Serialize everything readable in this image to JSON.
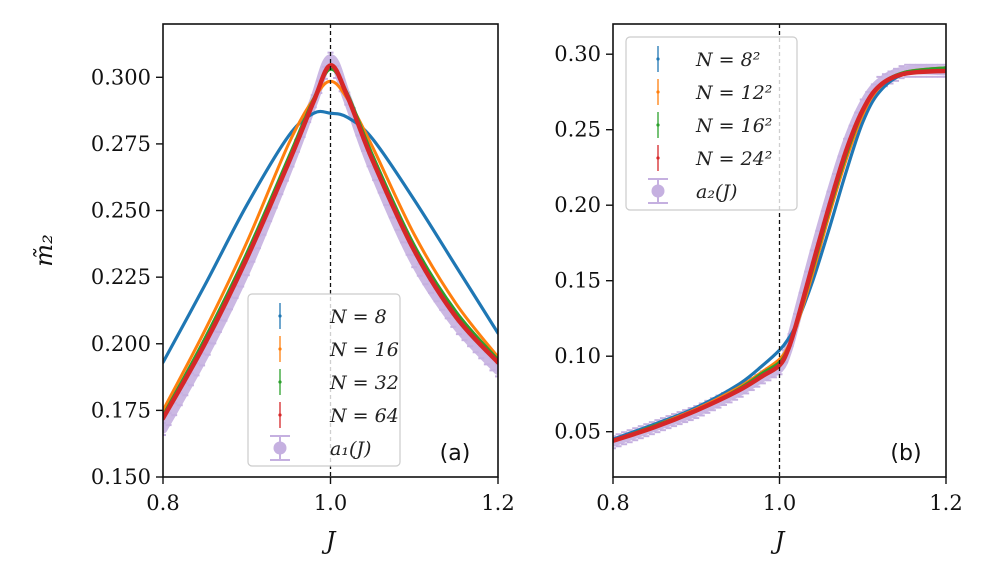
{
  "chart_data": [
    {
      "type": "line",
      "panel_label": "(a)",
      "title": "",
      "xlabel": "J",
      "ylabel": "m̃₂",
      "xlim": [
        0.8,
        1.2
      ],
      "ylim": [
        0.15,
        0.32
      ],
      "xticks": [
        "0.8",
        "1.0",
        "1.2"
      ],
      "xtick_values": [
        0.8,
        1.0,
        1.2
      ],
      "yticks": [
        "0.150",
        "0.175",
        "0.200",
        "0.225",
        "0.250",
        "0.275",
        "0.300"
      ],
      "ytick_values": [
        0.15,
        0.175,
        0.2,
        0.225,
        0.25,
        0.275,
        0.3
      ],
      "vline": 1.0,
      "legend_position": "lower-center",
      "x": [
        0.8,
        0.85,
        0.9,
        0.95,
        0.98,
        1.0,
        1.02,
        1.05,
        1.1,
        1.15,
        1.2
      ],
      "series": [
        {
          "name": "N = 8",
          "color": "#1f77b4",
          "values": [
            0.193,
            0.222,
            0.252,
            0.278,
            0.2865,
            0.2865,
            0.285,
            0.277,
            0.254,
            0.229,
            0.204
          ]
        },
        {
          "name": "N = 16",
          "color": "#ff7f0e",
          "values": [
            0.175,
            0.205,
            0.238,
            0.275,
            0.292,
            0.2985,
            0.292,
            0.274,
            0.241,
            0.215,
            0.195
          ]
        },
        {
          "name": "N = 32",
          "color": "#2ca02c",
          "values": [
            0.173,
            0.202,
            0.234,
            0.27,
            0.292,
            0.303,
            0.294,
            0.271,
            0.237,
            0.212,
            0.194
          ]
        },
        {
          "name": "N = 64",
          "color": "#d62728",
          "values": [
            0.172,
            0.2,
            0.232,
            0.268,
            0.291,
            0.3045,
            0.293,
            0.269,
            0.235,
            0.21,
            0.193
          ]
        },
        {
          "name": "a₁(J)",
          "color": "#c5b0e0",
          "values": [
            0.168,
            0.196,
            0.228,
            0.266,
            0.291,
            0.307,
            0.292,
            0.266,
            0.231,
            0.207,
            0.19
          ]
        }
      ]
    },
    {
      "type": "line",
      "panel_label": "(b)",
      "title": "",
      "xlabel": "J",
      "ylabel": "",
      "xlim": [
        0.8,
        1.2
      ],
      "ylim": [
        0.02,
        0.32
      ],
      "xticks": [
        "0.8",
        "1.0",
        "1.2"
      ],
      "xtick_values": [
        0.8,
        1.0,
        1.2
      ],
      "yticks": [
        "0.05",
        "0.10",
        "0.15",
        "0.20",
        "0.25",
        "0.30"
      ],
      "ytick_values": [
        0.05,
        0.1,
        0.15,
        0.2,
        0.25,
        0.3
      ],
      "vline": 1.0,
      "legend_position": "upper-left",
      "x": [
        0.8,
        0.85,
        0.9,
        0.95,
        0.98,
        1.0,
        1.01,
        1.02,
        1.04,
        1.06,
        1.08,
        1.1,
        1.12,
        1.15,
        1.2
      ],
      "series": [
        {
          "name": "N = 8²",
          "color": "#1f77b4",
          "values": [
            0.045,
            0.055,
            0.066,
            0.081,
            0.094,
            0.104,
            0.111,
            0.121,
            0.15,
            0.185,
            0.222,
            0.255,
            0.275,
            0.287,
            0.291
          ]
        },
        {
          "name": "N = 12²",
          "color": "#ff7f0e",
          "values": [
            0.044,
            0.054,
            0.065,
            0.079,
            0.09,
            0.098,
            0.106,
            0.119,
            0.155,
            0.194,
            0.23,
            0.26,
            0.278,
            0.288,
            0.291
          ]
        },
        {
          "name": "N = 16²",
          "color": "#2ca02c",
          "values": [
            0.044,
            0.054,
            0.064,
            0.078,
            0.089,
            0.096,
            0.105,
            0.12,
            0.158,
            0.197,
            0.233,
            0.262,
            0.279,
            0.288,
            0.291
          ]
        },
        {
          "name": "N = 24²",
          "color": "#d62728",
          "values": [
            0.044,
            0.053,
            0.064,
            0.077,
            0.087,
            0.094,
            0.104,
            0.121,
            0.161,
            0.2,
            0.236,
            0.263,
            0.279,
            0.287,
            0.289
          ]
        },
        {
          "name": "a₂(J)",
          "color": "#c5b0e0",
          "values": [
            0.043,
            0.053,
            0.063,
            0.076,
            0.086,
            0.092,
            0.104,
            0.124,
            0.166,
            0.205,
            0.24,
            0.266,
            0.281,
            0.289,
            0.289
          ]
        }
      ]
    }
  ]
}
